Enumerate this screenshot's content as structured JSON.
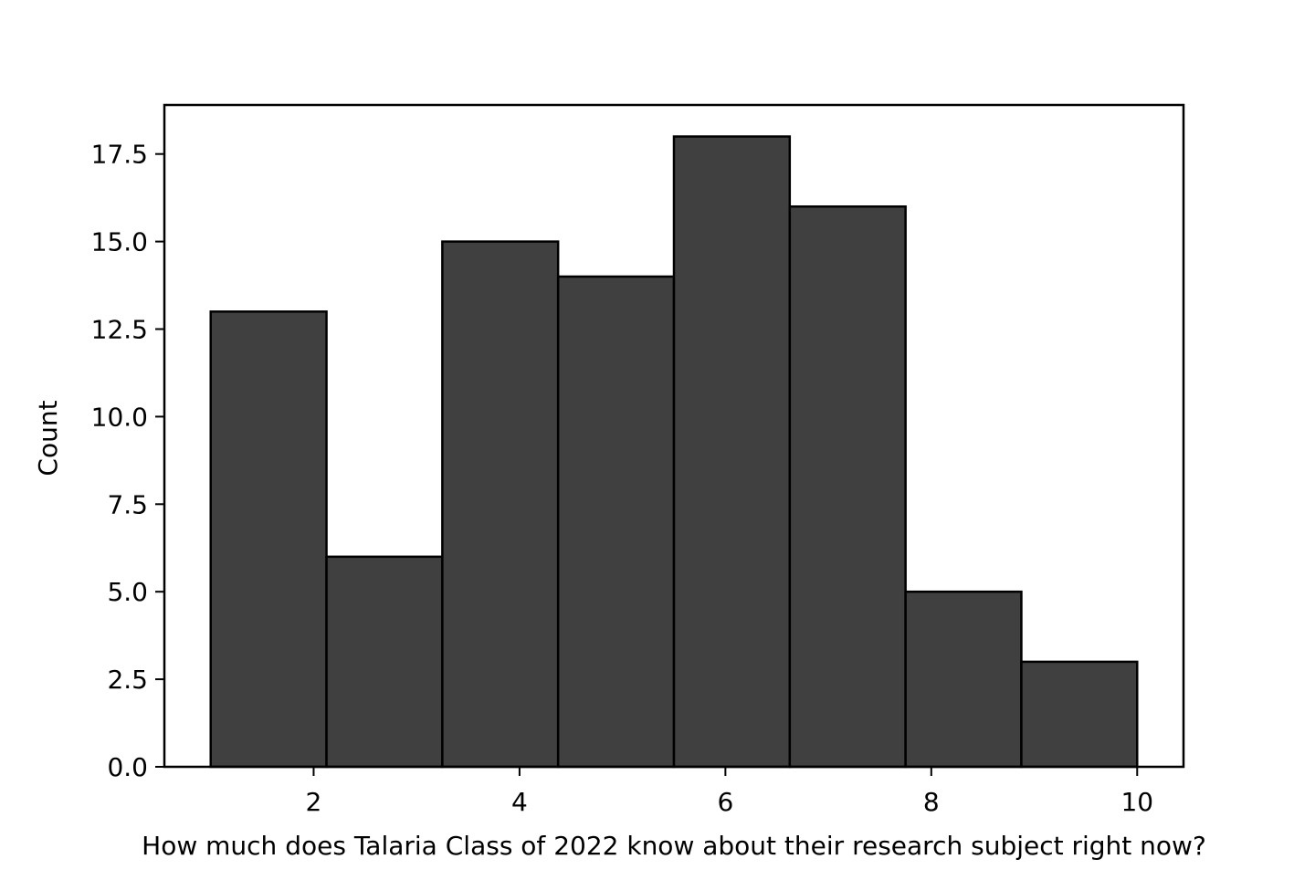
{
  "chart_data": {
    "type": "histogram",
    "xlabel": "How much does Talaria Class of 2022 know about their research subject right now?",
    "ylabel": "Count",
    "bins": [
      1,
      2.125,
      3.25,
      4.375,
      5.5,
      6.625,
      7.75,
      8.875,
      10
    ],
    "counts": [
      13,
      6,
      15,
      14,
      18,
      16,
      5,
      3
    ],
    "color": "#404040",
    "edgecolor": "#000000",
    "xlim": [
      0.55,
      10.45
    ],
    "xticks": [
      2,
      4,
      6,
      8,
      10
    ],
    "ylim": [
      0,
      18.9
    ],
    "yticks": [
      {
        "value": 0,
        "label": "0.0"
      },
      2.5,
      {
        "value": 5,
        "label": "5.0"
      },
      7.5,
      {
        "value": 10,
        "label": "10.0"
      },
      12.5,
      {
        "value": 15,
        "label": "15.0"
      },
      17.5
    ]
  }
}
